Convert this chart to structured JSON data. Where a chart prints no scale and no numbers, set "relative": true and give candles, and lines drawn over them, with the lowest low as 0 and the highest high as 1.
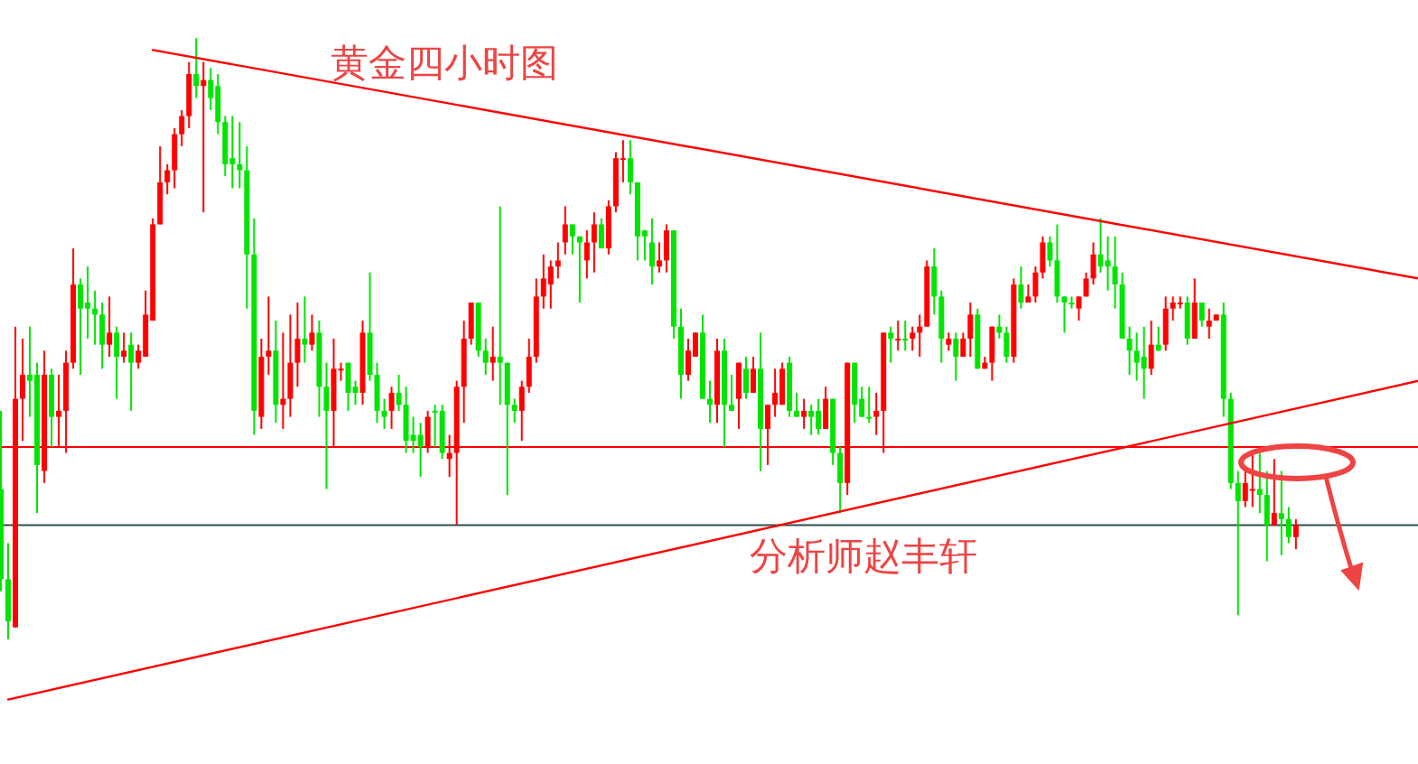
{
  "chart_data": {
    "type": "candlestick",
    "title": "黄金四小时图",
    "annotations": [
      "分析师赵丰轩"
    ],
    "relative": true,
    "categories": [
      null,
      null,
      null,
      null,
      null,
      null,
      null,
      null,
      null,
      null,
      null,
      null,
      null,
      null,
      null,
      null,
      null,
      null,
      null,
      null,
      null,
      null,
      null,
      null,
      null,
      null,
      null,
      null,
      null,
      null,
      null,
      null,
      null,
      null,
      null,
      null,
      null,
      null,
      null,
      null,
      null,
      null,
      null,
      null,
      null,
      null,
      null,
      null,
      null,
      null,
      null,
      null,
      null,
      null,
      null,
      null,
      null,
      null,
      null,
      null,
      null,
      null,
      null,
      null,
      null,
      null,
      null,
      null,
      null,
      null,
      null,
      null,
      null,
      null,
      null,
      null,
      null,
      null,
      null,
      null,
      null,
      null,
      null,
      null,
      null,
      null,
      null,
      null,
      null,
      null,
      null,
      null,
      null,
      null,
      null,
      null,
      null,
      null,
      null,
      null,
      null,
      null,
      null,
      null,
      null,
      null,
      null,
      null,
      null,
      null,
      null,
      null,
      null,
      null,
      null,
      null,
      null,
      null,
      null,
      null,
      null,
      null,
      null,
      null,
      null,
      null,
      null,
      null,
      null,
      null,
      null,
      null,
      null,
      null,
      null,
      null,
      null,
      null,
      null,
      null,
      null,
      null,
      null,
      null,
      null,
      null,
      null,
      null,
      null,
      null,
      null,
      null,
      null,
      null,
      null,
      null,
      null,
      null,
      null,
      null,
      null,
      null,
      null,
      null,
      null,
      null,
      null,
      null,
      null,
      null,
      null,
      null,
      null,
      null,
      null,
      null,
      null,
      null,
      null,
      null,
      null,
      null,
      null,
      null,
      null,
      null,
      null,
      null,
      null,
      null,
      null,
      null,
      null,
      null,
      null,
      null,
      null
    ],
    "ohlc": [
      [
        0.25,
        0.38,
        0.08,
        0.1
      ],
      [
        0.1,
        0.16,
        0.0,
        0.03
      ],
      [
        0.02,
        0.52,
        0.02,
        0.4
      ],
      [
        0.4,
        0.5,
        0.33,
        0.44
      ],
      [
        0.44,
        0.52,
        0.37,
        0.43
      ],
      [
        0.44,
        0.46,
        0.21,
        0.29
      ],
      [
        0.28,
        0.48,
        0.26,
        0.44
      ],
      [
        0.44,
        0.45,
        0.32,
        0.37
      ],
      [
        0.37,
        0.44,
        0.32,
        0.38
      ],
      [
        0.38,
        0.48,
        0.31,
        0.46
      ],
      [
        0.46,
        0.65,
        0.45,
        0.59
      ],
      [
        0.59,
        0.6,
        0.44,
        0.55
      ],
      [
        0.56,
        0.62,
        0.5,
        0.55
      ],
      [
        0.55,
        0.58,
        0.49,
        0.54
      ],
      [
        0.54,
        0.56,
        0.45,
        0.49
      ],
      [
        0.49,
        0.57,
        0.47,
        0.51
      ],
      [
        0.51,
        0.52,
        0.4,
        0.47
      ],
      [
        0.47,
        0.51,
        0.46,
        0.48
      ],
      [
        0.49,
        0.51,
        0.38,
        0.46
      ],
      [
        0.46,
        0.49,
        0.45,
        0.48
      ],
      [
        0.47,
        0.58,
        0.47,
        0.54
      ],
      [
        0.53,
        0.7,
        0.53,
        0.69
      ],
      [
        0.69,
        0.82,
        0.69,
        0.76
      ],
      [
        0.76,
        0.79,
        0.74,
        0.78
      ],
      [
        0.78,
        0.85,
        0.75,
        0.84
      ],
      [
        0.84,
        0.88,
        0.82,
        0.87
      ],
      [
        0.87,
        0.96,
        0.85,
        0.94
      ],
      [
        0.94,
        1.0,
        0.9,
        0.92
      ],
      [
        0.92,
        0.96,
        0.71,
        0.93
      ],
      [
        0.93,
        0.95,
        0.88,
        0.9
      ],
      [
        0.92,
        0.94,
        0.84,
        0.86
      ],
      [
        0.86,
        0.87,
        0.77,
        0.79
      ],
      [
        0.8,
        0.87,
        0.75,
        0.79
      ],
      [
        0.79,
        0.86,
        0.75,
        0.78
      ],
      [
        0.78,
        0.82,
        0.55,
        0.64
      ],
      [
        0.64,
        0.7,
        0.34,
        0.38
      ],
      [
        0.37,
        0.5,
        0.35,
        0.47
      ],
      [
        0.47,
        0.57,
        0.44,
        0.48
      ],
      [
        0.48,
        0.53,
        0.36,
        0.39
      ],
      [
        0.39,
        0.51,
        0.35,
        0.4
      ],
      [
        0.4,
        0.54,
        0.37,
        0.46
      ],
      [
        0.46,
        0.56,
        0.42,
        0.5
      ],
      [
        0.5,
        0.57,
        0.46,
        0.49
      ],
      [
        0.49,
        0.54,
        0.48,
        0.51
      ],
      [
        0.51,
        0.53,
        0.37,
        0.42
      ],
      [
        0.42,
        0.46,
        0.25,
        0.38
      ],
      [
        0.38,
        0.5,
        0.32,
        0.45
      ],
      [
        0.45,
        0.46,
        0.43,
        0.45
      ],
      [
        0.46,
        0.46,
        0.38,
        0.41
      ],
      [
        0.42,
        0.43,
        0.39,
        0.41
      ],
      [
        0.41,
        0.53,
        0.39,
        0.51
      ],
      [
        0.51,
        0.61,
        0.43,
        0.44
      ],
      [
        0.44,
        0.46,
        0.36,
        0.38
      ],
      [
        0.38,
        0.4,
        0.35,
        0.37
      ],
      [
        0.38,
        0.42,
        0.35,
        0.41
      ],
      [
        0.41,
        0.44,
        0.38,
        0.39
      ],
      [
        0.39,
        0.42,
        0.31,
        0.33
      ],
      [
        0.34,
        0.37,
        0.31,
        0.33
      ],
      [
        0.34,
        0.36,
        0.27,
        0.32
      ],
      [
        0.32,
        0.38,
        0.31,
        0.37
      ],
      [
        0.38,
        0.39,
        0.32,
        0.38
      ],
      [
        0.38,
        0.39,
        0.3,
        0.31
      ],
      [
        0.3,
        0.34,
        0.27,
        0.31
      ],
      [
        0.31,
        0.43,
        0.19,
        0.42
      ],
      [
        0.42,
        0.53,
        0.36,
        0.5
      ],
      [
        0.5,
        0.56,
        0.49,
        0.56
      ],
      [
        0.56,
        0.56,
        0.47,
        0.48
      ],
      [
        0.48,
        0.5,
        0.44,
        0.46
      ],
      [
        0.46,
        0.52,
        0.43,
        0.47
      ],
      [
        0.47,
        0.72,
        0.39,
        0.46
      ],
      [
        0.46,
        0.46,
        0.24,
        0.39
      ],
      [
        0.39,
        0.4,
        0.36,
        0.38
      ],
      [
        0.38,
        0.43,
        0.33,
        0.42
      ],
      [
        0.42,
        0.5,
        0.41,
        0.47
      ],
      [
        0.47,
        0.6,
        0.46,
        0.57
      ],
      [
        0.57,
        0.64,
        0.55,
        0.6
      ],
      [
        0.59,
        0.63,
        0.55,
        0.62
      ],
      [
        0.62,
        0.66,
        0.6,
        0.63
      ],
      [
        0.66,
        0.72,
        0.64,
        0.69
      ],
      [
        0.69,
        0.69,
        0.64,
        0.67
      ],
      [
        0.67,
        0.67,
        0.56,
        0.66
      ],
      [
        0.63,
        0.68,
        0.6,
        0.66
      ],
      [
        0.66,
        0.71,
        0.61,
        0.69
      ],
      [
        0.69,
        0.7,
        0.65,
        0.65
      ],
      [
        0.65,
        0.73,
        0.64,
        0.72
      ],
      [
        0.72,
        0.81,
        0.71,
        0.8
      ],
      [
        0.8,
        0.83,
        0.76,
        0.8
      ],
      [
        0.8,
        0.83,
        0.74,
        0.76
      ],
      [
        0.76,
        0.76,
        0.63,
        0.67
      ],
      [
        0.68,
        0.68,
        0.63,
        0.67
      ],
      [
        0.66,
        0.7,
        0.59,
        0.62
      ],
      [
        0.62,
        0.66,
        0.61,
        0.63
      ],
      [
        0.63,
        0.69,
        0.61,
        0.68
      ],
      [
        0.68,
        0.68,
        0.5,
        0.52
      ],
      [
        0.52,
        0.55,
        0.4,
        0.44
      ],
      [
        0.44,
        0.5,
        0.43,
        0.48
      ],
      [
        0.47,
        0.51,
        0.47,
        0.51
      ],
      [
        0.51,
        0.54,
        0.4,
        0.4
      ],
      [
        0.4,
        0.43,
        0.36,
        0.39
      ],
      [
        0.39,
        0.5,
        0.36,
        0.48
      ],
      [
        0.48,
        0.5,
        0.32,
        0.39
      ],
      [
        0.39,
        0.44,
        0.38,
        0.38
      ],
      [
        0.4,
        0.46,
        0.35,
        0.46
      ],
      [
        0.45,
        0.47,
        0.4,
        0.41
      ],
      [
        0.41,
        0.47,
        0.41,
        0.45
      ],
      [
        0.45,
        0.51,
        0.28,
        0.35
      ],
      [
        0.35,
        0.39,
        0.29,
        0.39
      ],
      [
        0.39,
        0.45,
        0.37,
        0.41
      ],
      [
        0.39,
        0.46,
        0.39,
        0.45
      ],
      [
        0.46,
        0.47,
        0.37,
        0.38
      ],
      [
        0.38,
        0.41,
        0.37,
        0.37
      ],
      [
        0.37,
        0.4,
        0.35,
        0.38
      ],
      [
        0.38,
        0.39,
        0.34,
        0.37
      ],
      [
        0.38,
        0.4,
        0.34,
        0.35
      ],
      [
        0.35,
        0.42,
        0.35,
        0.4
      ],
      [
        0.4,
        0.4,
        0.29,
        0.31
      ],
      [
        0.31,
        0.32,
        0.21,
        0.26
      ],
      [
        0.26,
        0.46,
        0.24,
        0.46
      ],
      [
        0.46,
        0.46,
        0.36,
        0.39
      ],
      [
        0.4,
        0.42,
        0.37,
        0.37
      ],
      [
        0.37,
        0.42,
        0.36,
        0.37
      ],
      [
        0.37,
        0.41,
        0.34,
        0.38
      ],
      [
        0.38,
        0.51,
        0.31,
        0.51
      ],
      [
        0.51,
        0.52,
        0.46,
        0.5
      ],
      [
        0.5,
        0.53,
        0.48,
        0.5
      ],
      [
        0.5,
        0.53,
        0.48,
        0.5
      ],
      [
        0.5,
        0.52,
        0.48,
        0.51
      ],
      [
        0.51,
        0.54,
        0.47,
        0.52
      ],
      [
        0.52,
        0.63,
        0.52,
        0.62
      ],
      [
        0.62,
        0.65,
        0.54,
        0.57
      ],
      [
        0.57,
        0.58,
        0.46,
        0.5
      ],
      [
        0.49,
        0.51,
        0.48,
        0.5
      ],
      [
        0.5,
        0.51,
        0.43,
        0.47
      ],
      [
        0.47,
        0.51,
        0.47,
        0.5
      ],
      [
        0.5,
        0.56,
        0.47,
        0.54
      ],
      [
        0.54,
        0.55,
        0.45,
        0.45
      ],
      [
        0.45,
        0.47,
        0.45,
        0.46
      ],
      [
        0.46,
        0.52,
        0.43,
        0.52
      ],
      [
        0.52,
        0.54,
        0.5,
        0.51
      ],
      [
        0.51,
        0.52,
        0.46,
        0.47
      ],
      [
        0.47,
        0.6,
        0.46,
        0.59
      ],
      [
        0.59,
        0.62,
        0.55,
        0.56
      ],
      [
        0.56,
        0.59,
        0.56,
        0.57
      ],
      [
        0.57,
        0.62,
        0.56,
        0.61
      ],
      [
        0.61,
        0.67,
        0.6,
        0.66
      ],
      [
        0.66,
        0.67,
        0.62,
        0.63
      ],
      [
        0.63,
        0.69,
        0.56,
        0.57
      ],
      [
        0.57,
        0.57,
        0.51,
        0.56
      ],
      [
        0.56,
        0.57,
        0.55,
        0.56
      ],
      [
        0.55,
        0.57,
        0.53,
        0.57
      ],
      [
        0.57,
        0.61,
        0.57,
        0.6
      ],
      [
        0.6,
        0.66,
        0.59,
        0.64
      ],
      [
        0.64,
        0.7,
        0.61,
        0.62
      ],
      [
        0.63,
        0.67,
        0.58,
        0.62
      ],
      [
        0.62,
        0.67,
        0.55,
        0.59
      ],
      [
        0.59,
        0.61,
        0.5,
        0.5
      ],
      [
        0.5,
        0.52,
        0.44,
        0.48
      ],
      [
        0.48,
        0.51,
        0.43,
        0.46
      ],
      [
        0.47,
        0.52,
        0.4,
        0.45
      ],
      [
        0.45,
        0.53,
        0.44,
        0.49
      ],
      [
        0.49,
        0.52,
        0.48,
        0.48
      ],
      [
        0.49,
        0.57,
        0.48,
        0.55
      ],
      [
        0.55,
        0.57,
        0.53,
        0.56
      ],
      [
        0.56,
        0.57,
        0.55,
        0.56
      ],
      [
        0.56,
        0.57,
        0.49,
        0.5
      ],
      [
        0.5,
        0.6,
        0.5,
        0.56
      ],
      [
        0.56,
        0.56,
        0.52,
        0.53
      ],
      [
        0.52,
        0.55,
        0.5,
        0.53
      ],
      [
        0.53,
        0.54,
        0.53,
        0.54
      ],
      [
        0.54,
        0.56,
        0.37,
        0.4
      ],
      [
        0.4,
        0.41,
        0.25,
        0.26
      ],
      [
        0.26,
        0.28,
        0.04,
        0.23
      ],
      [
        0.23,
        0.28,
        0.22,
        0.26
      ],
      [
        0.25,
        0.31,
        0.22,
        0.25
      ],
      [
        0.25,
        0.31,
        0.21,
        0.24
      ],
      [
        0.24,
        0.28,
        0.13,
        0.19
      ],
      [
        0.19,
        0.3,
        0.19,
        0.21
      ],
      [
        0.21,
        0.28,
        0.14,
        0.2
      ],
      [
        0.2,
        0.22,
        0.16,
        0.17
      ],
      [
        0.17,
        0.2,
        0.15,
        0.19
      ],
      null,
      null,
      null,
      null,
      null,
      null,
      null,
      null,
      null,
      null,
      null,
      null,
      null,
      null,
      null,
      null,
      null
    ],
    "colors": [
      "#00e400",
      "#00e400",
      "#ff0000",
      "#ff0000",
      "#00e400",
      "#00e400",
      "#ff0000",
      "#00e400",
      "#ff0000",
      "#ff0000",
      "#ff0000",
      "#00e400",
      "#00e400",
      "#00e400",
      "#00e400",
      "#ff0000",
      "#00e400",
      "#ff0000",
      "#00e400",
      "#ff0000",
      "#ff0000",
      "#ff0000",
      "#ff0000",
      "#ff0000",
      "#ff0000",
      "#ff0000",
      "#ff0000",
      "#00e400",
      "#ff0000",
      "#00e400",
      "#00e400",
      "#00e400",
      "#00e400",
      "#00e400",
      "#00e400",
      "#00e400",
      "#ff0000",
      "#ff0000",
      "#00e400",
      "#ff0000",
      "#ff0000",
      "#ff0000",
      "#00e400",
      "#ff0000",
      "#00e400",
      "#00e400",
      "#ff0000",
      "#ff0000",
      "#00e400",
      "#00e400",
      "#ff0000",
      "#00e400",
      "#00e400",
      "#00e400",
      "#ff0000",
      "#00e400",
      "#00e400",
      "#00e400",
      "#00e400",
      "#ff0000",
      "#00e400",
      "#00e400",
      "#ff0000",
      "#ff0000",
      "#ff0000",
      "#ff0000",
      "#00e400",
      "#00e400",
      "#ff0000",
      "#00e400",
      "#00e400",
      "#00e400",
      "#ff0000",
      "#ff0000",
      "#ff0000",
      "#ff0000",
      "#ff0000",
      "#ff0000",
      "#ff0000",
      "#00e400",
      "#00e400",
      "#ff0000",
      "#ff0000",
      "#00e400",
      "#ff0000",
      "#ff0000",
      "#ff0000",
      "#00e400",
      "#00e400",
      "#00e400",
      "#00e400",
      "#ff0000",
      "#ff0000",
      "#00e400",
      "#00e400",
      "#ff0000",
      "#ff0000",
      "#00e400",
      "#00e400",
      "#ff0000",
      "#00e400",
      "#00e400",
      "#ff0000",
      "#00e400",
      "#ff0000",
      "#00e400",
      "#ff0000",
      "#ff0000",
      "#ff0000",
      "#00e400",
      "#00e400",
      "#ff0000",
      "#00e400",
      "#00e400",
      "#ff0000",
      "#00e400",
      "#00e400",
      "#ff0000",
      "#00e400",
      "#00e400",
      "#00e400",
      "#ff0000",
      "#ff0000",
      "#00e400",
      "#ff0000",
      "#00e400",
      "#ff0000",
      "#ff0000",
      "#ff0000",
      "#00e400",
      "#00e400",
      "#ff0000",
      "#00e400",
      "#ff0000",
      "#ff0000",
      "#00e400",
      "#ff0000",
      "#ff0000",
      "#00e400",
      "#00e400",
      "#ff0000",
      "#00e400",
      "#ff0000",
      "#ff0000",
      "#ff0000",
      "#00e400",
      "#00e400",
      "#00e400",
      "#00e400",
      "#ff0000",
      "#ff0000",
      "#ff0000",
      "#00e400",
      "#00e400",
      "#00e400",
      "#00e400",
      "#00e400",
      "#00e400",
      "#00e400",
      "#ff0000",
      "#00e400",
      "#ff0000",
      "#ff0000",
      "#ff0000",
      "#00e400",
      "#ff0000",
      "#00e400",
      "#ff0000",
      "#ff0000",
      "#00e400",
      "#00e400",
      "#00e400",
      "#ff0000",
      "#ff0000",
      "#00e400",
      "#00e400",
      "#ff0000",
      "#00e400",
      "#00e400",
      "#ff0000",
      null,
      null,
      null,
      null,
      null,
      null,
      null,
      null,
      null,
      null,
      null,
      null,
      null,
      null,
      null,
      null,
      null
    ],
    "series": [
      {
        "type": "line",
        "color": "#ff0000",
        "values": [
          null,
          null,
          null,
          null,
          null,
          null,
          null,
          null,
          null,
          null,
          null,
          null,
          null,
          null,
          null,
          null,
          null,
          null,
          null,
          null,
          null,
          0.98,
          null,
          null,
          null,
          null,
          null,
          null,
          null,
          null,
          null,
          null,
          null,
          null,
          null,
          null,
          null,
          null,
          null,
          null,
          null,
          null,
          null,
          null,
          null,
          null,
          null,
          null,
          null,
          null,
          null,
          null,
          null,
          null,
          null,
          null,
          null,
          null,
          null,
          null,
          null,
          null,
          null,
          null,
          null,
          null,
          null,
          null,
          null,
          null,
          null,
          null,
          null,
          null,
          null,
          null,
          null,
          null,
          null,
          null,
          null,
          null,
          null,
          null,
          null,
          null,
          null,
          null,
          null,
          null,
          null,
          null,
          null,
          null,
          null,
          null,
          null,
          null,
          null,
          null,
          null,
          null,
          null,
          null,
          null,
          null,
          null,
          null,
          null,
          null,
          null,
          null,
          null,
          null,
          null,
          null,
          null,
          null,
          null,
          null,
          null,
          null,
          null,
          null,
          null,
          null,
          null,
          null,
          null,
          null,
          null,
          null,
          null,
          null,
          null,
          null,
          null,
          null,
          null,
          null,
          null,
          null,
          null,
          null,
          null,
          null,
          null,
          null,
          null,
          null,
          null,
          null,
          null,
          null,
          null,
          null,
          null,
          null,
          null,
          null,
          null,
          null,
          null,
          null,
          null,
          null,
          null,
          null,
          null,
          null,
          null,
          null,
          null,
          null,
          null,
          null,
          null,
          null,
          null,
          null,
          null,
          null,
          null,
          null,
          null,
          null,
          null,
          null,
          null,
          null,
          null,
          null,
          null,
          null,
          null,
          null,
          0.6
        ]
      },
      {
        "type": "line",
        "color": "#ff0000",
        "values": [
          null,
          -0.1,
          null,
          null,
          null,
          null,
          null,
          null,
          null,
          null,
          null,
          null,
          null,
          null,
          null,
          null,
          null,
          null,
          null,
          null,
          null,
          null,
          null,
          null,
          null,
          null,
          null,
          null,
          null,
          null,
          null,
          null,
          null,
          null,
          null,
          null,
          null,
          null,
          null,
          null,
          null,
          null,
          null,
          null,
          null,
          null,
          null,
          null,
          null,
          null,
          null,
          null,
          null,
          null,
          null,
          null,
          null,
          null,
          null,
          null,
          null,
          null,
          null,
          null,
          null,
          null,
          null,
          null,
          null,
          null,
          null,
          null,
          null,
          null,
          null,
          null,
          null,
          null,
          null,
          null,
          null,
          null,
          null,
          null,
          null,
          null,
          null,
          null,
          null,
          null,
          null,
          null,
          null,
          null,
          null,
          null,
          null,
          null,
          null,
          null,
          null,
          null,
          null,
          null,
          null,
          null,
          null,
          null,
          null,
          null,
          null,
          null,
          null,
          null,
          null,
          null,
          null,
          null,
          null,
          null,
          null,
          null,
          null,
          null,
          null,
          null,
          null,
          null,
          null,
          null,
          null,
          null,
          null,
          null,
          null,
          null,
          null,
          null,
          null,
          null,
          null,
          null,
          null,
          null,
          null,
          null,
          null,
          null,
          null,
          null,
          null,
          null,
          null,
          null,
          null,
          null,
          null,
          null,
          null,
          null,
          null,
          null,
          null,
          null,
          null,
          null,
          null,
          null,
          null,
          null,
          null,
          null,
          null,
          null,
          null,
          null,
          null,
          null,
          null,
          null,
          null,
          null,
          null,
          null,
          null,
          null,
          null,
          null,
          null,
          null,
          null,
          null,
          null,
          null,
          null,
          null,
          0.43
        ]
      }
    ],
    "ref_lines": [
      {
        "axis": "y",
        "value": 0.32,
        "color": "#ff0000"
      },
      {
        "axis": "y",
        "value": 0.19,
        "color": "#2f4f4f"
      }
    ]
  }
}
